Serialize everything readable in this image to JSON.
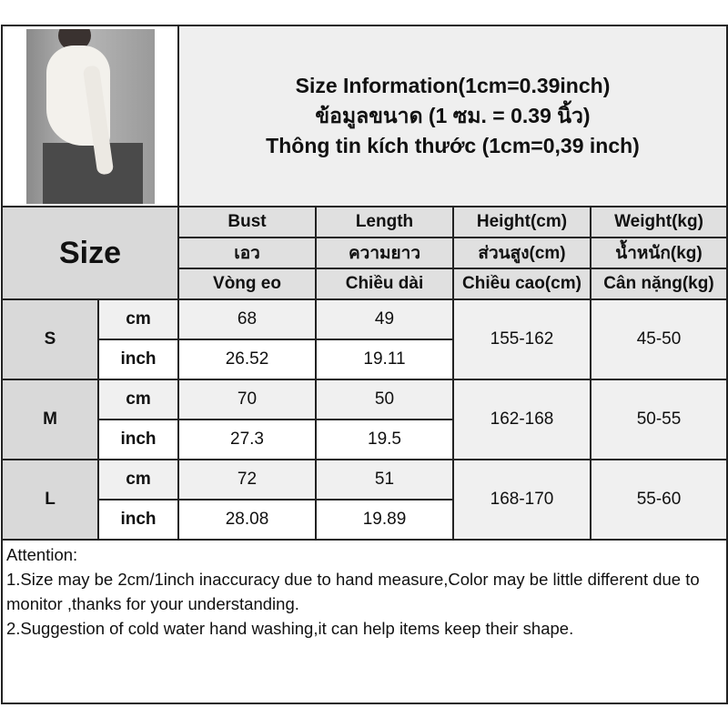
{
  "title": {
    "line1": "Size Information(1cm=0.39inch)",
    "line2": "ข้อมูลขนาด (1 ซม. = 0.39 นิ้ว)",
    "line3": "Thông tin kích thước (1cm=0,39 inch)"
  },
  "size_label": "Size",
  "headers": [
    [
      "Bust",
      "Length",
      "Height(cm)",
      "Weight(kg)"
    ],
    [
      "เอว",
      "ความยาว",
      "ส่วนสูง(cm)",
      "น้ำหนัก(kg)"
    ],
    [
      "Vòng eo",
      "Chiều dài",
      "Chiều cao(cm)",
      "Cân nặng(kg)"
    ]
  ],
  "units": {
    "cm": "cm",
    "inch": "inch"
  },
  "sizes": [
    {
      "size": "S",
      "cm": {
        "bust": "68",
        "length": "49"
      },
      "inch": {
        "bust": "26.52",
        "length": "19.11"
      },
      "height": "155-162",
      "weight": "45-50"
    },
    {
      "size": "M",
      "cm": {
        "bust": "70",
        "length": "50"
      },
      "inch": {
        "bust": "27.3",
        "length": "19.5"
      },
      "height": "162-168",
      "weight": "50-55"
    },
    {
      "size": "L",
      "cm": {
        "bust": "72",
        "length": "51"
      },
      "inch": {
        "bust": "28.08",
        "length": "19.89"
      },
      "height": "168-170",
      "weight": "55-60"
    }
  ],
  "attention": {
    "heading": "Attention:",
    "line1": "1.Size may be 2cm/1inch inaccuracy due to hand measure,Color may be little different due to monitor ,thanks for your understanding.",
    "line2": "2.Suggestion of cold water hand washing,it can help items keep their shape."
  }
}
